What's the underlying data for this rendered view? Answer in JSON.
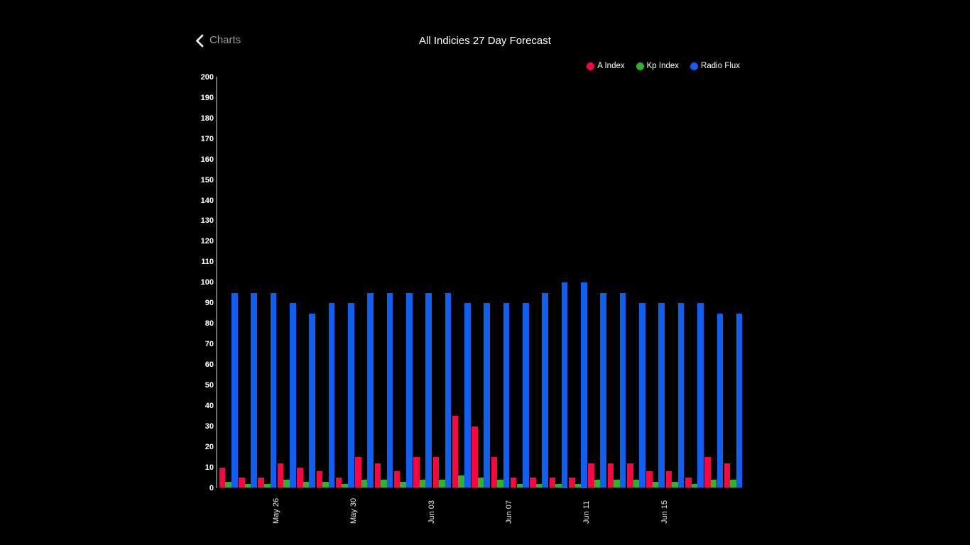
{
  "header": {
    "back_label": "Charts",
    "title": "All Indicies 27 Day Forecast"
  },
  "legend": {
    "items": [
      {
        "label": "A Index",
        "color": "#f5073f"
      },
      {
        "label": "Kp Index",
        "color": "#2eb32a"
      },
      {
        "label": "Radio Flux",
        "color": "#0f5ff2"
      }
    ]
  },
  "chart_data": {
    "type": "bar",
    "title": "All Indicies 27 Day Forecast",
    "xlabel": "",
    "ylabel": "",
    "grid": false,
    "background": "#000000",
    "legend_position": "top-right",
    "y_axis": {
      "min": 0,
      "max": 200,
      "step": 10
    },
    "n_groups": 27,
    "x_tick_labels": [
      {
        "group_index": 3,
        "label": "May 26"
      },
      {
        "group_index": 7,
        "label": "May 30"
      },
      {
        "group_index": 11,
        "label": "Jun 03"
      },
      {
        "group_index": 15,
        "label": "Jun 07"
      },
      {
        "group_index": 19,
        "label": "Jun 11"
      },
      {
        "group_index": 23,
        "label": "Jun 15"
      }
    ],
    "series": [
      {
        "name": "A Index",
        "color": "#f5073f",
        "values": [
          10,
          5,
          5,
          12,
          10,
          8,
          5,
          15,
          12,
          8,
          15,
          15,
          35,
          30,
          15,
          5,
          5,
          5,
          5,
          12,
          12,
          12,
          8,
          8,
          5,
          15,
          12
        ]
      },
      {
        "name": "Kp Index",
        "color": "#2eb32a",
        "values": [
          3,
          2,
          2,
          4,
          3,
          3,
          2,
          4,
          4,
          3,
          4,
          4,
          6,
          5,
          4,
          2,
          2,
          2,
          2,
          4,
          4,
          4,
          3,
          3,
          2,
          4,
          4
        ]
      },
      {
        "name": "Radio Flux",
        "color": "#0f5ff2",
        "values": [
          95,
          95,
          95,
          90,
          85,
          90,
          90,
          95,
          95,
          95,
          95,
          95,
          90,
          90,
          90,
          90,
          95,
          100,
          100,
          95,
          95,
          90,
          90,
          90,
          90,
          85,
          85
        ]
      }
    ]
  }
}
